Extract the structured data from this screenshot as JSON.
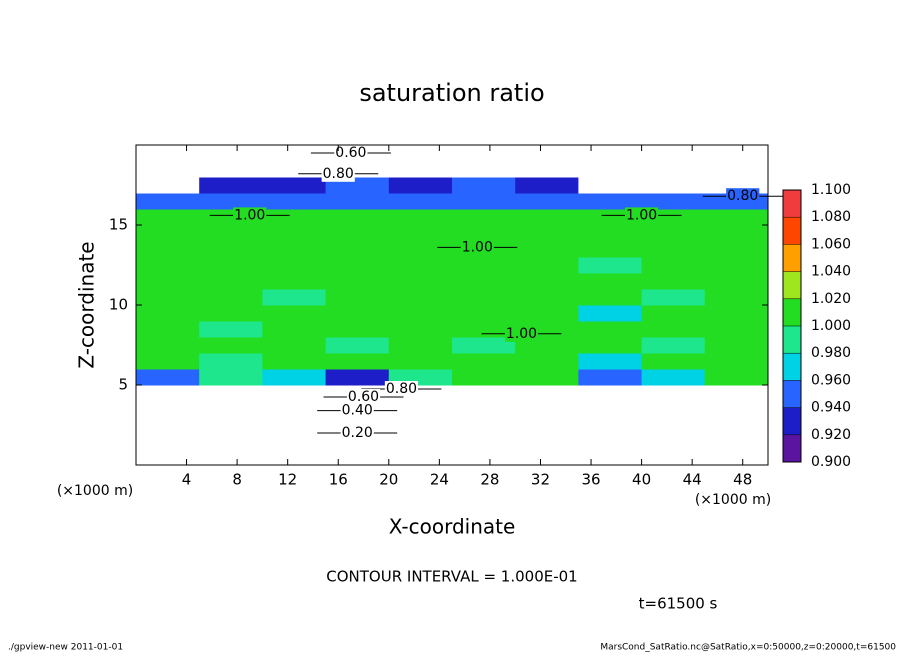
{
  "chart_data": {
    "type": "shaded-contour",
    "title": "saturation ratio",
    "x_label": "X-coordinate",
    "y_label": "Z-coordinate",
    "x_unit_label": "(×1000 m)",
    "y_unit_label": "(×1000 m)",
    "contour_interval": "CONTOUR INTERVAL = 1.000E-01",
    "time_label": "t=61500 s",
    "footer_left": "./gpview-new  2011-01-01",
    "footer_right": "MarsCond_SatRatio.nc@SatRatio,x=0:50000,z=0:20000,t=61500",
    "xlim": [
      0,
      50
    ],
    "xticks": [
      4,
      8,
      12,
      16,
      20,
      24,
      28,
      32,
      36,
      40,
      44,
      48
    ],
    "ylim": [
      0,
      20
    ],
    "yticks": [
      5,
      10,
      15
    ],
    "x": [
      2.5,
      7.5,
      12.5,
      17.5,
      22.5,
      27.5,
      32.5,
      37.5,
      42.5,
      47.5
    ],
    "y": [
      0.5,
      1.5,
      2.5,
      3.5,
      4.5,
      5.5,
      6.5,
      7.5,
      8.5,
      9.5,
      10.5,
      11.5,
      12.5,
      13.5,
      14.5,
      15.5,
      16.5,
      17.5,
      18.5,
      19.5
    ],
    "z": [
      [
        0.08,
        0.08,
        0.08,
        0.08,
        0.08,
        0.08,
        0.08,
        0.08,
        0.08,
        0.08
      ],
      [
        0.16,
        0.16,
        0.16,
        0.16,
        0.16,
        0.16,
        0.16,
        0.16,
        0.16,
        0.16
      ],
      [
        0.26,
        0.26,
        0.26,
        0.26,
        0.26,
        0.26,
        0.26,
        0.26,
        0.26,
        0.26
      ],
      [
        0.42,
        0.42,
        0.42,
        0.4,
        0.42,
        0.42,
        0.42,
        0.42,
        0.42,
        0.42
      ],
      [
        0.75,
        0.72,
        0.7,
        0.62,
        0.8,
        0.75,
        0.78,
        0.8,
        0.75,
        0.75
      ],
      [
        0.95,
        0.99,
        0.97,
        0.93,
        0.99,
        1.005,
        1.005,
        0.95,
        0.97,
        1.005
      ],
      [
        1.005,
        0.99,
        1.005,
        1.005,
        1.005,
        1.005,
        1.005,
        0.97,
        1.005,
        1.005
      ],
      [
        1.005,
        1.005,
        1.005,
        0.99,
        1.005,
        0.99,
        1.005,
        1.005,
        0.99,
        1.005
      ],
      [
        1.005,
        0.99,
        1.005,
        1.005,
        1.005,
        1.005,
        1.005,
        1.005,
        1.005,
        1.005
      ],
      [
        1.005,
        1.005,
        1.005,
        1.005,
        1.005,
        1.005,
        1.005,
        0.97,
        1.005,
        1.005
      ],
      [
        1.005,
        1.005,
        0.99,
        1.005,
        1.005,
        1.005,
        1.005,
        1.005,
        0.99,
        1.005
      ],
      [
        1.005,
        1.005,
        1.005,
        1.005,
        1.005,
        1.005,
        1.005,
        1.005,
        1.005,
        1.005
      ],
      [
        1.005,
        1.005,
        1.005,
        1.005,
        1.005,
        1.005,
        1.005,
        0.99,
        1.005,
        1.005
      ],
      [
        1.005,
        1.005,
        1.005,
        1.005,
        1.005,
        1.005,
        1.005,
        1.005,
        1.005,
        1.005
      ],
      [
        1.005,
        1.005,
        1.005,
        1.005,
        1.005,
        1.005,
        1.005,
        1.005,
        1.005,
        1.005
      ],
      [
        1.005,
        1.005,
        1.005,
        1.005,
        1.005,
        1.005,
        1.005,
        1.005,
        1.005,
        1.005
      ],
      [
        0.95,
        0.95,
        0.95,
        0.95,
        0.95,
        0.95,
        0.95,
        0.95,
        0.95,
        0.95
      ],
      [
        0.83,
        0.93,
        0.93,
        0.95,
        0.93,
        0.95,
        0.93,
        0.85,
        0.85,
        0.85
      ],
      [
        0.72,
        0.72,
        0.72,
        0.72,
        0.72,
        0.72,
        0.72,
        0.72,
        0.72,
        0.72
      ],
      [
        0.58,
        0.58,
        0.58,
        0.58,
        0.58,
        0.58,
        0.58,
        0.58,
        0.58,
        0.58
      ]
    ],
    "colorbar_levels": [
      {
        "value": 0.9,
        "label": "0.900"
      },
      {
        "value": 0.92,
        "label": "0.920"
      },
      {
        "value": 0.94,
        "label": "0.940"
      },
      {
        "value": 0.96,
        "label": "0.960"
      },
      {
        "value": 0.98,
        "label": "0.980"
      },
      {
        "value": 1.0,
        "label": "1.000"
      },
      {
        "value": 1.02,
        "label": "1.020"
      },
      {
        "value": 1.04,
        "label": "1.040"
      },
      {
        "value": 1.06,
        "label": "1.060"
      },
      {
        "value": 1.08,
        "label": "1.080"
      },
      {
        "value": 1.1,
        "label": "1.100"
      }
    ],
    "colorbar_colors": [
      "#5a14a0",
      "#1e1ec8",
      "#2864ff",
      "#00d2e6",
      "#1ee68c",
      "#22dd22",
      "#a0e61e",
      "#ffa000",
      "#ff4600",
      "#f03c3c"
    ],
    "contour_labels": [
      {
        "x": 17,
        "z": 19.5,
        "value": 0.6,
        "label": "0.60"
      },
      {
        "x": 16,
        "z": 18.2,
        "value": 0.8,
        "label": "0.80"
      },
      {
        "x": 48,
        "z": 16.8,
        "value": 0.8,
        "label": "0.80"
      },
      {
        "x": 9,
        "z": 15.6,
        "value": 1.0,
        "label": "1.00"
      },
      {
        "x": 27,
        "z": 13.6,
        "value": 1.0,
        "label": "1.00"
      },
      {
        "x": 40,
        "z": 15.6,
        "value": 1.0,
        "label": "1.00"
      },
      {
        "x": 30.5,
        "z": 8.2,
        "value": 1.0,
        "label": "1.00"
      },
      {
        "x": 21,
        "z": 4.75,
        "value": 0.8,
        "label": "0.80"
      },
      {
        "x": 18,
        "z": 4.25,
        "value": 0.6,
        "label": "0.60"
      },
      {
        "x": 17.5,
        "z": 3.4,
        "value": 0.4,
        "label": "0.40"
      },
      {
        "x": 17.5,
        "z": 2.0,
        "value": 0.2,
        "label": "0.20"
      }
    ]
  }
}
